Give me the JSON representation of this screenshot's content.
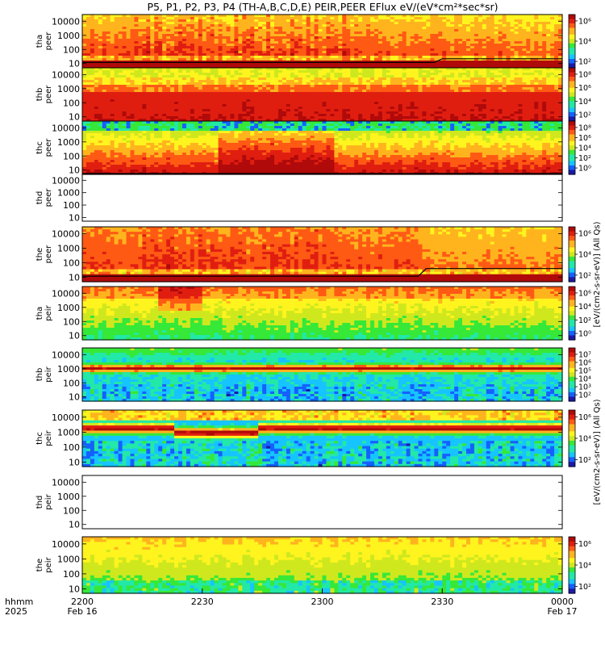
{
  "chart_data": {
    "type": "heatmap",
    "title": "P5, P1, P2, P3, P4 (TH-A,B,C,D,E) PEIR,PEER EFlux eV/(eV*cm²*sec*sr)",
    "x_axis": {
      "row_labels": [
        "hhmm",
        "2025"
      ],
      "ticks": [
        "2200",
        "2230",
        "2300",
        "2330",
        "0000"
      ],
      "date_labels": [
        "Feb 16",
        "Feb 17"
      ],
      "range": [
        "2025-02-16 22:00",
        "2025-02-17 00:00"
      ]
    },
    "y_ticks": [
      "10000",
      "1000",
      "100",
      "10"
    ],
    "y_scale": "log",
    "y_range_eV": [
      5,
      30000
    ],
    "colorbar_label_peer": "[eV/(cm2-s-sr-eV)] (All Qs)",
    "colorbar_label_peir": "[eV/(cm2-s-sr-eV)] (All Qs)",
    "panels": [
      {
        "id": "tha-peer",
        "label": [
          "tha",
          "peer"
        ],
        "profile": "peer_a",
        "has_data": true,
        "colorbar": [
          "10⁶",
          "10⁴",
          "10²"
        ],
        "sc_potential_line": true
      },
      {
        "id": "thb-peer",
        "label": [
          "thb",
          "peer"
        ],
        "profile": "peer_b",
        "has_data": true,
        "colorbar": [
          "10⁸",
          "10⁶",
          "10⁴",
          "10²"
        ],
        "sc_potential_line": false
      },
      {
        "id": "thc-peer",
        "label": [
          "thc",
          "peer"
        ],
        "profile": "peer_c",
        "has_data": true,
        "colorbar": [
          "10⁸",
          "10⁶",
          "10⁴",
          "10²",
          "10⁰"
        ],
        "sc_potential_line": true
      },
      {
        "id": "thd-peer",
        "label": [
          "thd",
          "peer"
        ],
        "profile": "none",
        "has_data": false,
        "colorbar": [],
        "sc_potential_line": false
      },
      {
        "id": "the-peer",
        "label": [
          "the",
          "peer"
        ],
        "profile": "peer_e",
        "has_data": true,
        "colorbar": [
          "10⁶",
          "10⁴",
          "10²"
        ],
        "sc_potential_line": true
      },
      {
        "id": "tha-peir",
        "label": [
          "tha",
          "peir"
        ],
        "profile": "peir_a",
        "has_data": true,
        "colorbar": [
          "10⁶",
          "10⁴",
          "10²",
          "10⁰"
        ],
        "sc_potential_line": false
      },
      {
        "id": "thb-peir",
        "label": [
          "thb",
          "peir"
        ],
        "profile": "peir_b",
        "has_data": true,
        "colorbar": [
          "10⁷",
          "10⁶",
          "10⁵",
          "10⁴",
          "10³",
          "10²"
        ],
        "sc_potential_line": false
      },
      {
        "id": "thc-peir",
        "label": [
          "thc",
          "peir"
        ],
        "profile": "peir_c",
        "has_data": true,
        "colorbar": [
          "10⁶",
          "10⁴",
          "10²"
        ],
        "sc_potential_line": false
      },
      {
        "id": "thd-peir",
        "label": [
          "thd",
          "peir"
        ],
        "profile": "none",
        "has_data": false,
        "colorbar": [],
        "sc_potential_line": false
      },
      {
        "id": "the-peir",
        "label": [
          "the",
          "peir"
        ],
        "profile": "peir_e",
        "has_data": true,
        "colorbar": [
          "10⁶",
          "10⁴",
          "10²"
        ],
        "sc_potential_line": false
      }
    ],
    "colormap": [
      "#1a1aa8",
      "#1560ff",
      "#16c4ff",
      "#22e8a8",
      "#36e838",
      "#cfe81e",
      "#fff41e",
      "#ffb41e",
      "#ff5a14",
      "#e01e10",
      "#b00a0a"
    ]
  }
}
